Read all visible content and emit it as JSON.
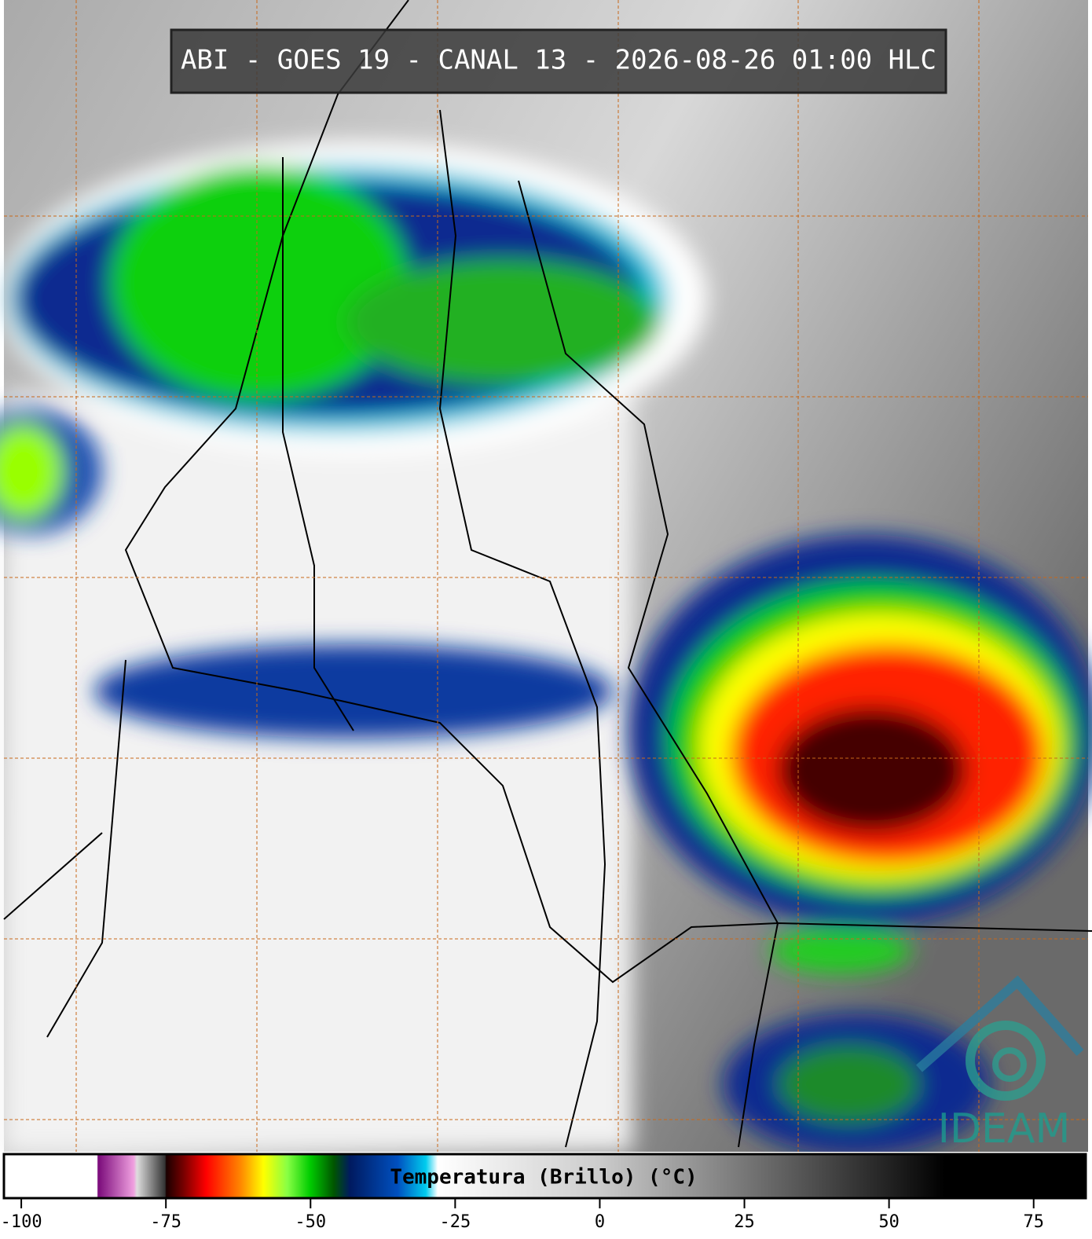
{
  "header": {
    "title": "ABI - GOES 19 - CANAL 13 - 2026-08-26 01:00 HLC"
  },
  "logo": {
    "text": "IDEAM"
  },
  "colorbar": {
    "label": "Temperatura (Brillo) (°C)",
    "lim": [
      -103,
      84
    ],
    "ticks": [
      -100,
      -75,
      -50,
      -25,
      0,
      25,
      50,
      75
    ]
  }
}
